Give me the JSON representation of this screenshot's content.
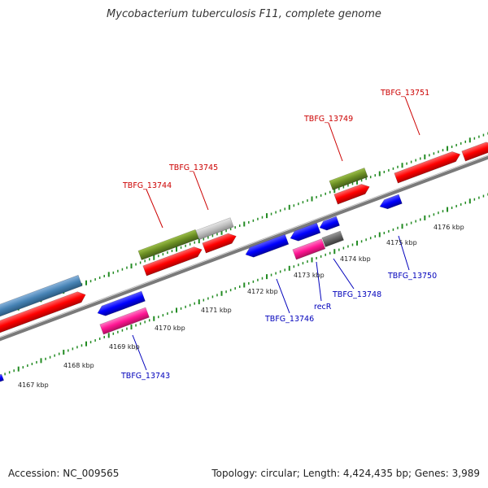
{
  "title": "Mycobacterium tuberculosis F11, complete genome",
  "footer": {
    "accession": "Accession: NC_009565",
    "summary": "Topology: circular; Length: 4,424,435 bp; Genes: 3,989"
  },
  "colors": {
    "forward_gene": "#ff0000",
    "reverse_gene": "#0000ff",
    "rna_green": "#6b8e23",
    "pink_gene": "#ff1493",
    "steel_blue": "#4682b4",
    "grey_gene": "#c0c0c0",
    "dark_grey_gene": "#666666",
    "backbone": "#808080",
    "ruler_ticks": "#228b22",
    "label_forward": "#cc0000",
    "label_reverse": "#0000bb"
  },
  "ruler_labels": [
    "4167 kbp",
    "4168 kbp",
    "4169 kbp",
    "4170 kbp",
    "4171 kbp",
    "4172 kbp",
    "4173 kbp",
    "4174 kbp",
    "4175 kbp",
    "4176 kbp"
  ],
  "gene_labels": {
    "forward": [
      "TBFG_13744",
      "TBFG_13745",
      "TBFG_13749",
      "TBFG_13751"
    ],
    "reverse": [
      "TBFG_13743",
      "TBFG_13746",
      "recR",
      "TBFG_13748",
      "TBFG_13750"
    ]
  }
}
